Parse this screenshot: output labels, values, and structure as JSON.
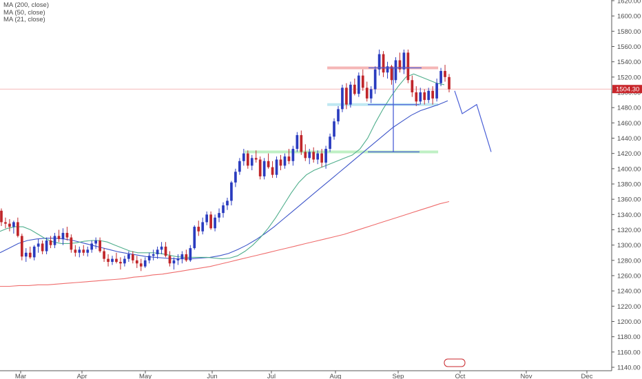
{
  "legend": [
    {
      "label": "MA (200, close)"
    },
    {
      "label": "MA (50, close)"
    },
    {
      "label": "MA (21, close)"
    }
  ],
  "chart_data": {
    "type": "candlestick",
    "ylim": [
      1140,
      1620
    ],
    "y_ticks": [
      1140,
      1160,
      1180,
      1200,
      1220,
      1240,
      1260,
      1280,
      1300,
      1320,
      1340,
      1360,
      1380,
      1400,
      1420,
      1440,
      1460,
      1480,
      1500,
      1520,
      1540,
      1560,
      1580,
      1600,
      1620
    ],
    "x_labels": [
      "Mar",
      "Apr",
      "May",
      "Jun",
      "Jul",
      "Aug",
      "Sep",
      "Oct",
      "Nov",
      "Dec"
    ],
    "last_price": {
      "value": 1504.3,
      "label": "1504.30"
    },
    "colors": {
      "up": "#2a3cbf",
      "down": "#c0262a",
      "ma200": "#ef6b6b",
      "ma50": "#3d55c9",
      "ma21": "#4fae8c",
      "price_line": "#f2a0a0",
      "projection": "#4a5fd6"
    },
    "candles": [
      [
        1345,
        1348,
        1325,
        1330
      ],
      [
        1330,
        1336,
        1322,
        1328
      ],
      [
        1328,
        1334,
        1318,
        1324
      ],
      [
        1324,
        1332,
        1315,
        1330
      ],
      [
        1330,
        1336,
        1310,
        1312
      ],
      [
        1312,
        1315,
        1280,
        1285
      ],
      [
        1285,
        1296,
        1278,
        1290
      ],
      [
        1290,
        1298,
        1282,
        1284
      ],
      [
        1284,
        1300,
        1280,
        1298
      ],
      [
        1298,
        1308,
        1290,
        1302
      ],
      [
        1302,
        1306,
        1288,
        1292
      ],
      [
        1292,
        1310,
        1288,
        1306
      ],
      [
        1306,
        1312,
        1296,
        1300
      ],
      [
        1300,
        1316,
        1296,
        1312
      ],
      [
        1312,
        1320,
        1304,
        1308
      ],
      [
        1308,
        1322,
        1300,
        1316
      ],
      [
        1316,
        1324,
        1306,
        1310
      ],
      [
        1310,
        1314,
        1290,
        1294
      ],
      [
        1294,
        1300,
        1285,
        1290
      ],
      [
        1290,
        1298,
        1284,
        1294
      ],
      [
        1294,
        1300,
        1286,
        1290
      ],
      [
        1290,
        1298,
        1285,
        1294
      ],
      [
        1294,
        1306,
        1290,
        1302
      ],
      [
        1302,
        1310,
        1295,
        1306
      ],
      [
        1306,
        1310,
        1290,
        1292
      ],
      [
        1292,
        1296,
        1278,
        1282
      ],
      [
        1282,
        1288,
        1272,
        1278
      ],
      [
        1278,
        1286,
        1274,
        1282
      ],
      [
        1282,
        1290,
        1276,
        1278
      ],
      [
        1278,
        1284,
        1268,
        1276
      ],
      [
        1276,
        1286,
        1272,
        1282
      ],
      [
        1282,
        1292,
        1278,
        1288
      ],
      [
        1288,
        1292,
        1276,
        1280
      ],
      [
        1280,
        1286,
        1270,
        1276
      ],
      [
        1276,
        1282,
        1266,
        1272
      ],
      [
        1272,
        1284,
        1270,
        1280
      ],
      [
        1280,
        1290,
        1276,
        1286
      ],
      [
        1286,
        1294,
        1280,
        1288
      ],
      [
        1288,
        1298,
        1282,
        1294
      ],
      [
        1294,
        1304,
        1288,
        1298
      ],
      [
        1298,
        1304,
        1284,
        1286
      ],
      [
        1286,
        1292,
        1272,
        1276
      ],
      [
        1276,
        1284,
        1268,
        1280
      ],
      [
        1280,
        1288,
        1274,
        1282
      ],
      [
        1282,
        1292,
        1276,
        1288
      ],
      [
        1288,
        1294,
        1278,
        1280
      ],
      [
        1280,
        1300,
        1278,
        1296
      ],
      [
        1296,
        1326,
        1294,
        1324
      ],
      [
        1324,
        1332,
        1312,
        1318
      ],
      [
        1318,
        1336,
        1314,
        1330
      ],
      [
        1330,
        1344,
        1326,
        1340
      ],
      [
        1340,
        1344,
        1320,
        1322
      ],
      [
        1322,
        1340,
        1318,
        1336
      ],
      [
        1336,
        1348,
        1330,
        1342
      ],
      [
        1342,
        1356,
        1336,
        1352
      ],
      [
        1352,
        1362,
        1346,
        1358
      ],
      [
        1358,
        1384,
        1352,
        1382
      ],
      [
        1382,
        1400,
        1376,
        1396
      ],
      [
        1396,
        1414,
        1392,
        1410
      ],
      [
        1410,
        1426,
        1404,
        1420
      ],
      [
        1420,
        1424,
        1400,
        1404
      ],
      [
        1404,
        1418,
        1398,
        1414
      ],
      [
        1414,
        1424,
        1408,
        1412
      ],
      [
        1412,
        1416,
        1386,
        1390
      ],
      [
        1390,
        1414,
        1386,
        1410
      ],
      [
        1410,
        1420,
        1400,
        1402
      ],
      [
        1402,
        1410,
        1388,
        1392
      ],
      [
        1392,
        1416,
        1388,
        1412
      ],
      [
        1412,
        1418,
        1398,
        1404
      ],
      [
        1404,
        1420,
        1400,
        1416
      ],
      [
        1416,
        1426,
        1406,
        1410
      ],
      [
        1410,
        1430,
        1404,
        1426
      ],
      [
        1426,
        1448,
        1422,
        1444
      ],
      [
        1444,
        1450,
        1418,
        1422
      ],
      [
        1422,
        1432,
        1410,
        1414
      ],
      [
        1414,
        1426,
        1406,
        1422
      ],
      [
        1422,
        1428,
        1408,
        1412
      ],
      [
        1412,
        1424,
        1406,
        1420
      ],
      [
        1420,
        1426,
        1402,
        1408
      ],
      [
        1408,
        1430,
        1400,
        1426
      ],
      [
        1426,
        1446,
        1422,
        1442
      ],
      [
        1442,
        1466,
        1438,
        1462
      ],
      [
        1462,
        1482,
        1458,
        1478
      ],
      [
        1478,
        1510,
        1474,
        1506
      ],
      [
        1506,
        1512,
        1478,
        1484
      ],
      [
        1484,
        1514,
        1480,
        1510
      ],
      [
        1510,
        1518,
        1496,
        1498
      ],
      [
        1498,
        1526,
        1494,
        1522
      ],
      [
        1522,
        1530,
        1502,
        1506
      ],
      [
        1506,
        1514,
        1488,
        1492
      ],
      [
        1492,
        1508,
        1486,
        1504
      ],
      [
        1504,
        1534,
        1498,
        1530
      ],
      [
        1530,
        1556,
        1522,
        1550
      ],
      [
        1550,
        1554,
        1520,
        1526
      ],
      [
        1526,
        1540,
        1518,
        1534
      ],
      [
        1534,
        1536,
        1510,
        1516
      ],
      [
        1516,
        1546,
        1512,
        1542
      ],
      [
        1542,
        1552,
        1526,
        1530
      ],
      [
        1530,
        1556,
        1524,
        1552
      ],
      [
        1552,
        1556,
        1512,
        1516
      ],
      [
        1516,
        1522,
        1494,
        1500
      ],
      [
        1500,
        1508,
        1482,
        1488
      ],
      [
        1488,
        1506,
        1484,
        1500
      ],
      [
        1500,
        1504,
        1484,
        1490
      ],
      [
        1490,
        1506,
        1486,
        1502
      ],
      [
        1502,
        1508,
        1484,
        1492
      ],
      [
        1492,
        1518,
        1488,
        1512
      ],
      [
        1512,
        1532,
        1508,
        1528
      ],
      [
        1528,
        1536,
        1514,
        1520
      ],
      [
        1520,
        1524,
        1500,
        1504
      ]
    ],
    "ma200": [
      1246,
      1246,
      1247,
      1247,
      1248,
      1248,
      1249,
      1250,
      1251,
      1252,
      1253,
      1254,
      1255,
      1256,
      1258,
      1259,
      1261,
      1262,
      1264,
      1266,
      1268,
      1270,
      1272,
      1275,
      1278,
      1281,
      1284,
      1287,
      1290,
      1293,
      1296,
      1299,
      1302,
      1305,
      1308,
      1311,
      1314,
      1318,
      1322,
      1326,
      1330,
      1334,
      1338,
      1342,
      1346,
      1350,
      1354,
      1357
    ],
    "ma50": [
      1290,
      1296,
      1302,
      1306,
      1308,
      1309,
      1309,
      1308,
      1306,
      1303,
      1300,
      1297,
      1294,
      1291,
      1289,
      1287,
      1285,
      1284,
      1283,
      1282,
      1282,
      1282,
      1283,
      1284,
      1286,
      1289,
      1294,
      1300,
      1307,
      1315,
      1324,
      1334,
      1344,
      1354,
      1364,
      1374,
      1384,
      1394,
      1404,
      1414,
      1424,
      1434,
      1444,
      1454,
      1462,
      1470,
      1476,
      1480,
      1484,
      1489
    ],
    "ma21": [
      1318,
      1322,
      1324,
      1324,
      1320,
      1314,
      1308,
      1304,
      1302,
      1302,
      1303,
      1305,
      1306,
      1306,
      1304,
      1300,
      1296,
      1292,
      1290,
      1290,
      1290,
      1289,
      1287,
      1285,
      1284,
      1284,
      1284,
      1284,
      1283,
      1282,
      1283,
      1286,
      1292,
      1300,
      1310,
      1322,
      1336,
      1352,
      1368,
      1382,
      1392,
      1398,
      1402,
      1406,
      1410,
      1414,
      1418,
      1426,
      1440,
      1460,
      1478,
      1494,
      1508,
      1520,
      1524,
      1520,
      1516,
      1512,
      1510
    ],
    "levels": [
      {
        "value": 1532,
        "color": "#f5b6b6",
        "x_from": 0.535,
        "x_to": 0.66
      },
      {
        "value": 1484,
        "color": "#bfe8f2",
        "x_from": 0.535,
        "x_to": 0.66
      },
      {
        "value": 1422,
        "color": "#bff0c4",
        "x_from": 0.4,
        "x_to": 0.66
      }
    ],
    "projection": [
      1502,
      1472,
      1484,
      1422
    ]
  }
}
